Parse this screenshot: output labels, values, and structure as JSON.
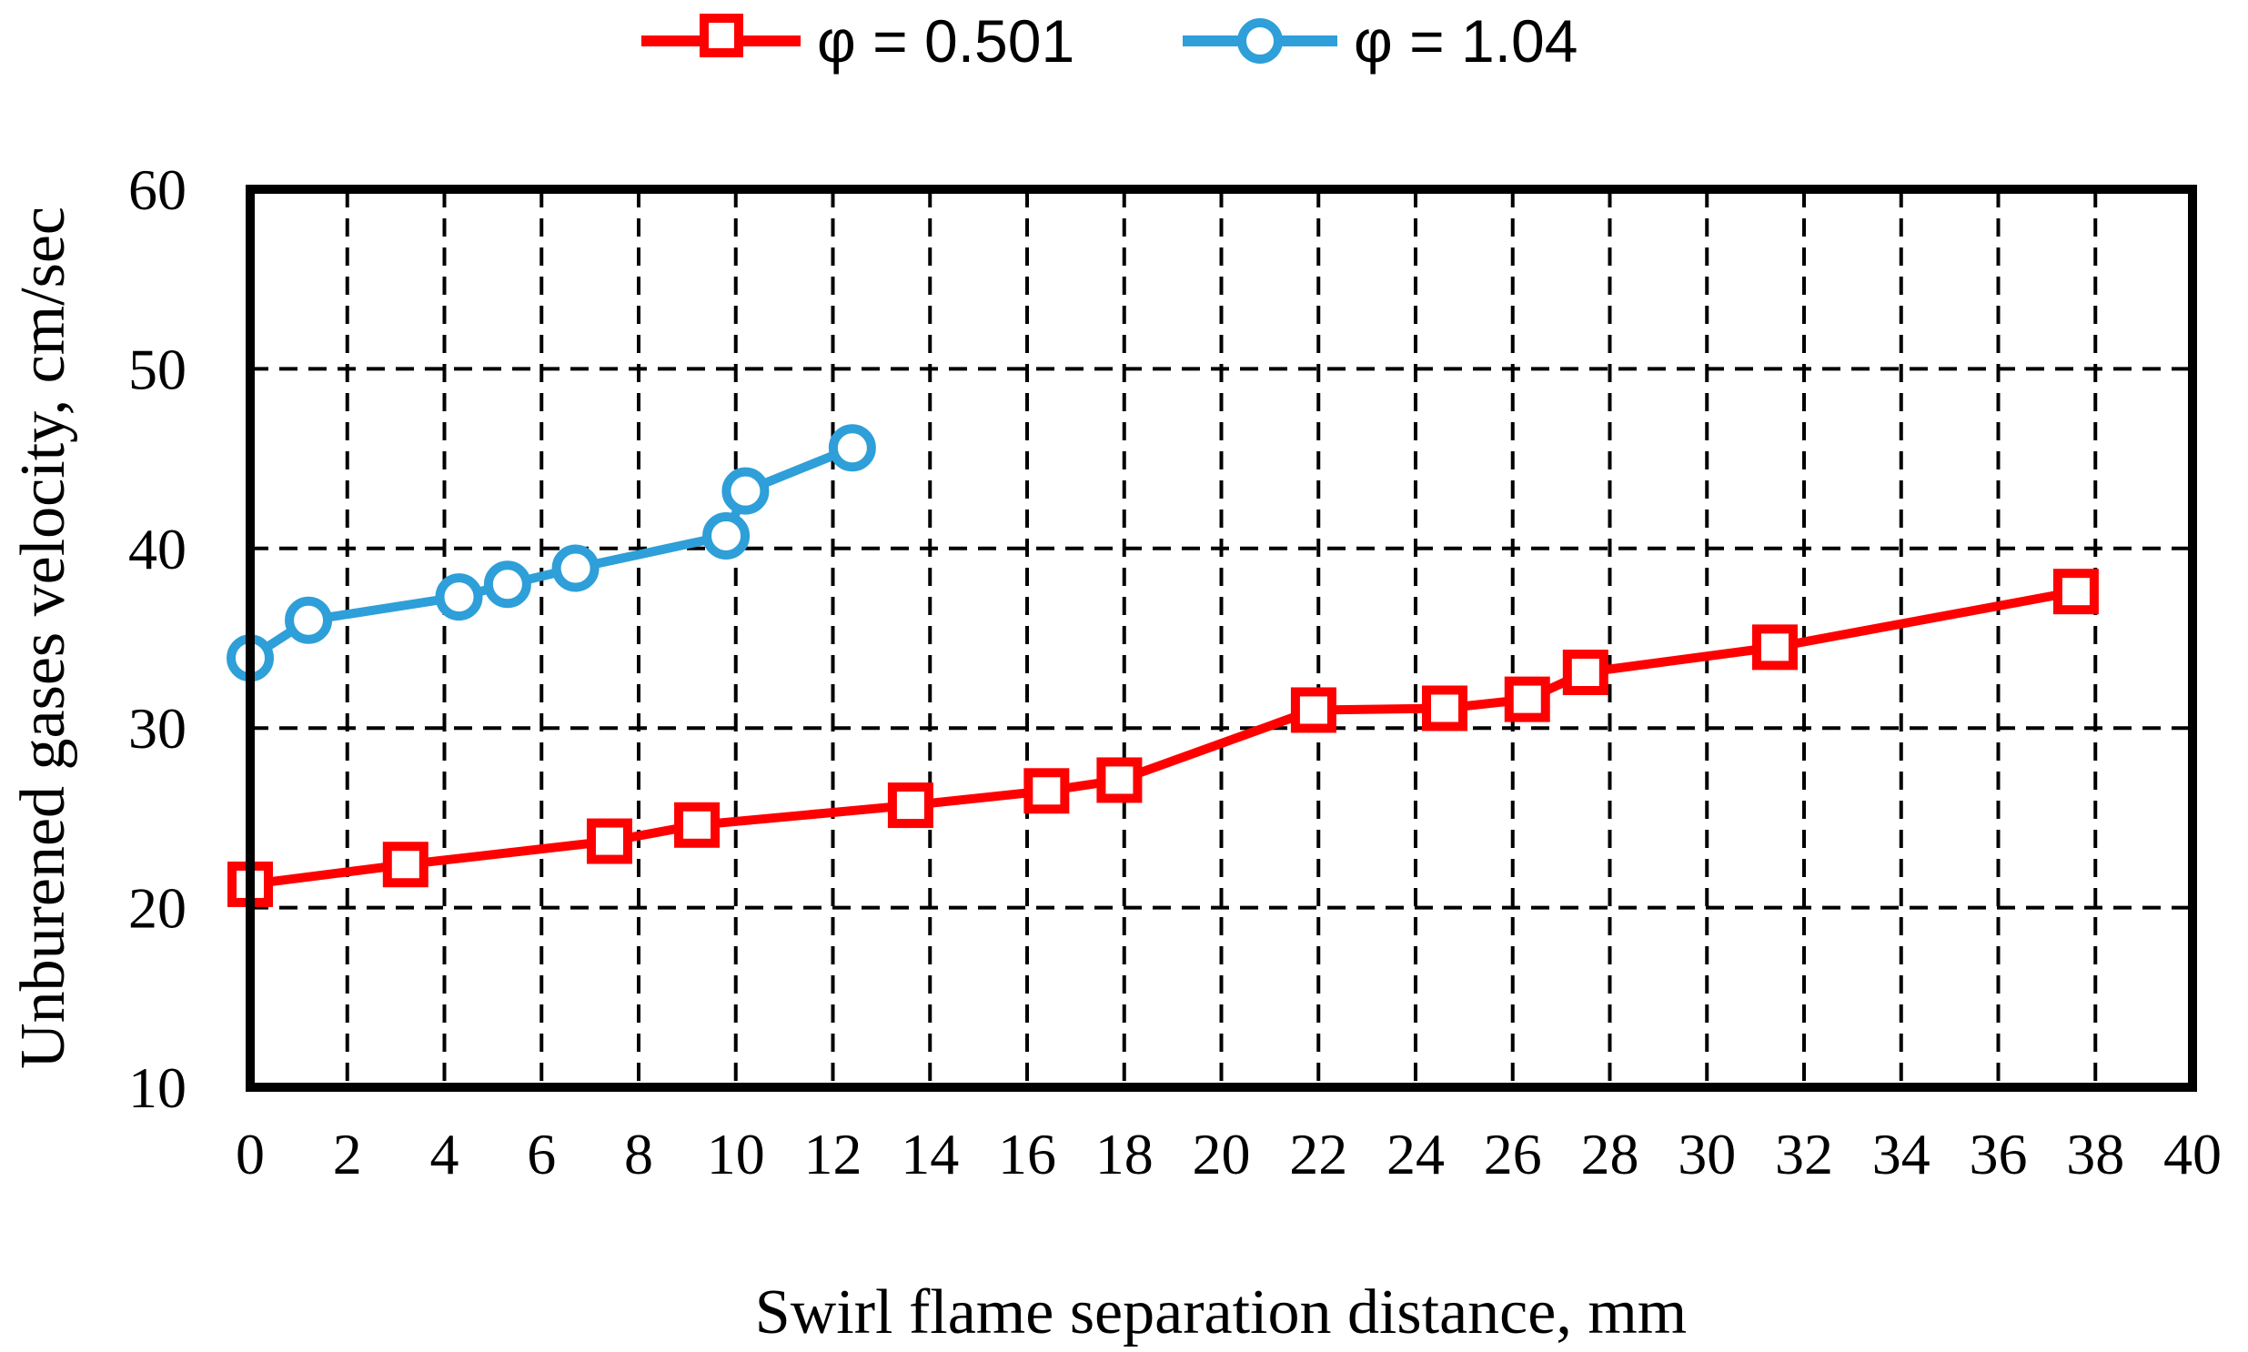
{
  "chart_data": {
    "type": "line",
    "xlabel": "Swirl flame separation distance, mm",
    "ylabel": "Unburened gases velocity, cm/sec",
    "xlim": [
      0,
      40
    ],
    "ylim": [
      10,
      60
    ],
    "xticks": [
      "0",
      "2",
      "4",
      "6",
      "8",
      "10",
      "12",
      "14",
      "16",
      "18",
      "20",
      "22",
      "24",
      "26",
      "28",
      "30",
      "32",
      "34",
      "36",
      "38",
      "40"
    ],
    "yticks": [
      "10",
      "20",
      "30",
      "40",
      "50",
      "60"
    ],
    "grid": true,
    "legend_position": "top-center",
    "series": [
      {
        "name": "φ = 0.501",
        "color": "#ff0000",
        "marker": "square",
        "x": [
          0,
          3.2,
          7.4,
          9.2,
          13.6,
          16.4,
          17.9,
          21.9,
          24.6,
          26.3,
          27.5,
          31.4,
          37.6
        ],
        "y": [
          21.3,
          22.4,
          23.7,
          24.6,
          25.7,
          26.5,
          27.1,
          31.0,
          31.1,
          31.6,
          33.1,
          34.5,
          37.6
        ]
      },
      {
        "name": "φ = 1.04",
        "color": "#2e9fd8",
        "marker": "circle",
        "x": [
          0,
          1.2,
          4.3,
          5.3,
          6.7,
          9.8,
          10.2,
          12.4
        ],
        "y": [
          33.9,
          36.0,
          37.3,
          38.0,
          38.9,
          40.7,
          43.2,
          45.6
        ]
      }
    ]
  }
}
